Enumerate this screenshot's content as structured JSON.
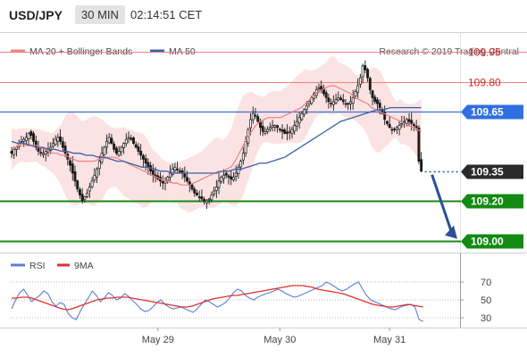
{
  "header": {
    "symbol": "USD/JPY",
    "timeframe": "30 MIN",
    "time": "02:14:51 CET"
  },
  "legend": {
    "bollinger": {
      "label": "MA 20 + Bollinger Bands",
      "color": "#f08080"
    },
    "ma50": {
      "label": "MA 50",
      "color": "#3a5fa8"
    }
  },
  "research": "Research © 2019 Trading Central",
  "chart_data": {
    "type": "candlestick",
    "price_axis": {
      "min": 108.94,
      "max": 110.05
    },
    "levels": [
      {
        "value": 109.95,
        "label": "109.95",
        "kind": "resistance-line"
      },
      {
        "value": 109.8,
        "label": "109.80",
        "kind": "resistance-line"
      },
      {
        "value": 109.65,
        "label": "109.65",
        "kind": "pivot-tag"
      },
      {
        "value": 109.35,
        "label": "109.35",
        "kind": "last-price-tag"
      },
      {
        "value": 109.2,
        "label": "109.20",
        "kind": "support-tag"
      },
      {
        "value": 109.0,
        "label": "109.00",
        "kind": "support-tag"
      }
    ],
    "closes": [
      109.44,
      109.46,
      109.47,
      109.49,
      109.5,
      109.51,
      109.52,
      109.54,
      109.53,
      109.5,
      109.47,
      109.45,
      109.44,
      109.44,
      109.45,
      109.46,
      109.47,
      109.49,
      109.51,
      109.52,
      109.5,
      109.47,
      109.44,
      109.41,
      109.38,
      109.34,
      109.3,
      109.26,
      109.23,
      109.2,
      109.22,
      109.24,
      109.27,
      109.3,
      109.33,
      109.36,
      109.4,
      109.44,
      109.47,
      109.5,
      109.52,
      109.49,
      109.46,
      109.44,
      109.45,
      109.47,
      109.49,
      109.51,
      109.52,
      109.51,
      109.49,
      109.47,
      109.45,
      109.43,
      109.41,
      109.39,
      109.37,
      109.35,
      109.33,
      109.32,
      109.31,
      109.3,
      109.29,
      109.3,
      109.32,
      109.34,
      109.36,
      109.37,
      109.36,
      109.35,
      109.34,
      109.32,
      109.3,
      109.28,
      109.26,
      109.24,
      109.23,
      109.22,
      109.21,
      109.2,
      109.2,
      109.21,
      109.23,
      109.25,
      109.27,
      109.3,
      109.32,
      109.33,
      109.33,
      109.32,
      109.31,
      109.32,
      109.34,
      109.37,
      109.4,
      109.44,
      109.5,
      109.56,
      109.61,
      109.64,
      109.63,
      109.6,
      109.57,
      109.55,
      109.55,
      109.56,
      109.57,
      109.58,
      109.58,
      109.57,
      109.56,
      109.55,
      109.54,
      109.54,
      109.55,
      109.56,
      109.58,
      109.6,
      109.62,
      109.64,
      109.66,
      109.68,
      109.7,
      109.72,
      109.74,
      109.76,
      109.77,
      109.76,
      109.74,
      109.72,
      109.7,
      109.69,
      109.7,
      109.71,
      109.72,
      109.71,
      109.7,
      109.69,
      109.69,
      109.7,
      109.72,
      109.75,
      109.78,
      109.82,
      109.88,
      109.86,
      109.82,
      109.76,
      109.72,
      109.7,
      109.69,
      109.67,
      109.64,
      109.61,
      109.59,
      109.57,
      109.56,
      109.56,
      109.57,
      109.58,
      109.59,
      109.6,
      109.61,
      109.6,
      109.59,
      109.58,
      109.57,
      109.4,
      109.35
    ],
    "ma20": [
      109.46,
      109.47,
      109.48,
      109.48,
      109.48,
      109.48,
      109.48,
      109.47,
      109.46,
      109.45,
      109.44,
      109.44,
      109.43,
      109.43,
      109.42,
      109.41,
      109.4,
      109.4,
      109.4,
      109.4,
      109.4,
      109.41,
      109.41,
      109.42,
      109.42,
      109.42,
      109.41,
      109.4,
      109.39,
      109.38,
      109.37,
      109.36,
      109.35,
      109.34,
      109.33,
      109.32,
      109.31,
      109.3,
      109.3,
      109.29,
      109.29,
      109.28,
      109.28,
      109.28,
      109.29,
      109.3,
      109.31,
      109.32,
      109.33,
      109.34,
      109.35,
      109.35,
      109.36,
      109.37,
      109.4,
      109.44,
      109.48,
      109.52,
      109.55,
      109.58,
      109.6,
      109.61,
      109.62,
      109.62,
      109.62,
      109.62,
      109.63,
      109.64,
      109.65,
      109.66,
      109.67,
      109.69,
      109.71,
      109.73,
      109.75,
      109.76,
      109.77,
      109.78,
      109.78,
      109.77,
      109.76,
      109.75,
      109.74,
      109.72,
      109.71,
      109.7,
      109.69,
      109.67,
      109.66,
      109.65,
      109.64,
      109.63,
      109.62,
      109.61,
      109.6,
      109.59,
      109.58,
      109.57,
      109.56,
      109.55
    ],
    "ma50": [
      109.5,
      109.49,
      109.49,
      109.48,
      109.47,
      109.47,
      109.46,
      109.46,
      109.45,
      109.45,
      109.44,
      109.44,
      109.43,
      109.43,
      109.42,
      109.42,
      109.41,
      109.4,
      109.4,
      109.39,
      109.38,
      109.37,
      109.37,
      109.36,
      109.35,
      109.35,
      109.34,
      109.34,
      109.34,
      109.34,
      109.34,
      109.34,
      109.34,
      109.34,
      109.35,
      109.35,
      109.36,
      109.36,
      109.37,
      109.38,
      109.39,
      109.39,
      109.4,
      109.41,
      109.42,
      109.44,
      109.46,
      109.48,
      109.5,
      109.52,
      109.54,
      109.56,
      109.58,
      109.6,
      109.61,
      109.62,
      109.63,
      109.64,
      109.65,
      109.66,
      109.66,
      109.67,
      109.67,
      109.67,
      109.67,
      109.67,
      109.67
    ],
    "x_labels": [
      {
        "label": "May 29",
        "bar": 60
      },
      {
        "label": "May 30",
        "bar": 110
      },
      {
        "label": "May 31",
        "bar": 155
      }
    ]
  },
  "rsi": {
    "legend": {
      "rsi": "RSI",
      "ma": "9MA",
      "rsi_color": "#5a7fd6",
      "ma_color": "#e03030"
    },
    "axis": {
      "min": 20,
      "max": 80,
      "ticks": [
        70,
        50,
        30
      ],
      "tick_labels": [
        "70",
        "50",
        "30"
      ]
    },
    "rsi_values": [
      40,
      50,
      58,
      62,
      55,
      48,
      52,
      55,
      60,
      57,
      48,
      43,
      47,
      45,
      35,
      30,
      28,
      37,
      45,
      52,
      60,
      55,
      48,
      52,
      58,
      55,
      50,
      52,
      57,
      54,
      49,
      45,
      40,
      37,
      38,
      42,
      47,
      50,
      45,
      42,
      40,
      41,
      42,
      40,
      38,
      36,
      40,
      45,
      50,
      48,
      45,
      42,
      44,
      47,
      52,
      58,
      62,
      60,
      55,
      52,
      50,
      53,
      55,
      57,
      58,
      60,
      62,
      60,
      57,
      55,
      53,
      54,
      56,
      58,
      60,
      62,
      64,
      66,
      70,
      68,
      65,
      62,
      60,
      62,
      65,
      68,
      70,
      62,
      55,
      50,
      48,
      46,
      44,
      42,
      40,
      39,
      41,
      43,
      44,
      45,
      42,
      28,
      26
    ],
    "ma_values": [
      52,
      52,
      53,
      53,
      52,
      50,
      48,
      46,
      44,
      42,
      40,
      39,
      40,
      42,
      44,
      46,
      48,
      50,
      51,
      52,
      52,
      53,
      53,
      53,
      52,
      51,
      50,
      49,
      48,
      47,
      46,
      45,
      44,
      43,
      42,
      42,
      43,
      45,
      47,
      49,
      51,
      52,
      53,
      54,
      55,
      55,
      56,
      57,
      58,
      59,
      60,
      61,
      62,
      63,
      64,
      65,
      66,
      66,
      66,
      65,
      64,
      62,
      61,
      60,
      59,
      58,
      57,
      55,
      53,
      51,
      49,
      47,
      45,
      44,
      43,
      42,
      42,
      43,
      44,
      45,
      44,
      43,
      42
    ]
  }
}
